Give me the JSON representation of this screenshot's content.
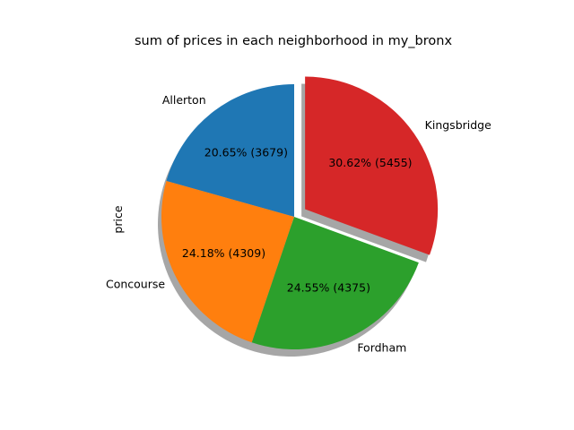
{
  "chart_data": {
    "type": "pie",
    "title": "sum of prices in each neighborhood in my_bronx",
    "ylabel": "price",
    "categories": [
      "Allerton",
      "Concourse",
      "Fordham",
      "Kingsbridge"
    ],
    "values": [
      3679,
      4309,
      4375,
      5455
    ],
    "percent_labels": [
      "20.65%  (3679)",
      "24.18%  (4309)",
      "24.55%  (4375)",
      "30.62%  (5455)"
    ],
    "colors": [
      "#1f77b4",
      "#ff7f0e",
      "#2ca02c",
      "#d62728"
    ],
    "exploded": [
      "Kingsbridge"
    ],
    "start_angle_deg": 90,
    "direction": "counterclockwise",
    "shadow": true
  }
}
